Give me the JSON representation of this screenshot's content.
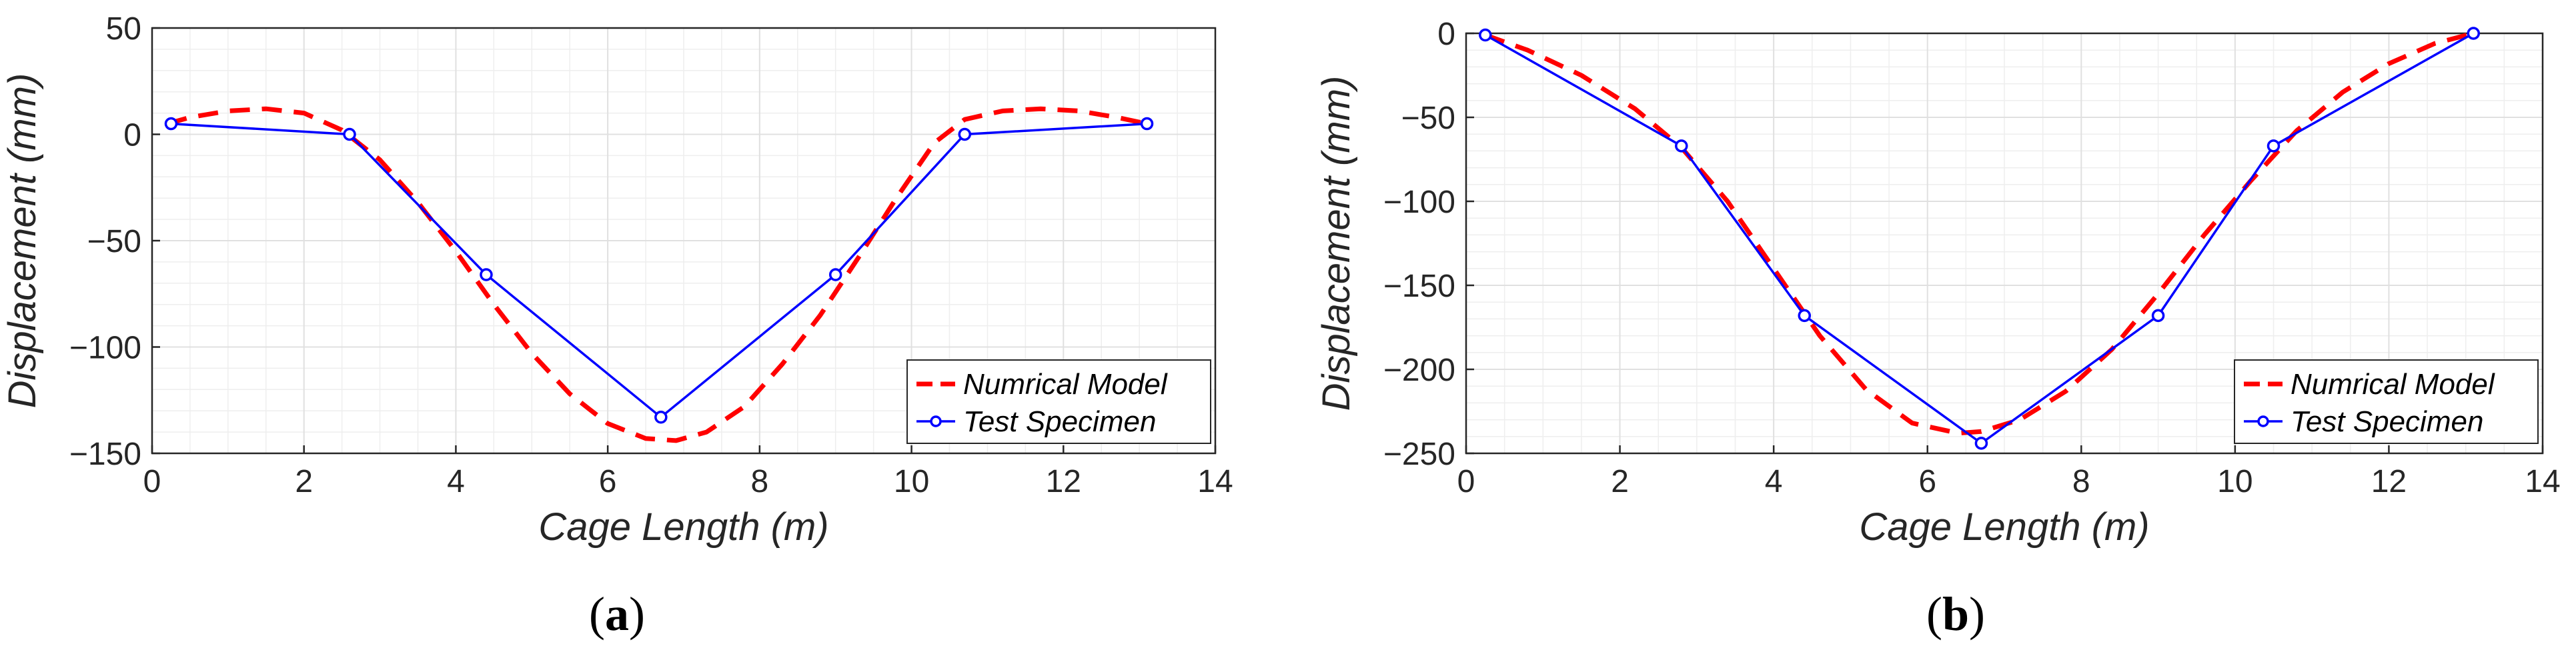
{
  "colors": {
    "numerical": "#ff0000",
    "test": "#0000ff",
    "grid": "#e0e0e0",
    "axis": "#262626"
  },
  "chart_data": [
    {
      "type": "line",
      "id": "a",
      "caption": {
        "open": "(",
        "letter": "a",
        "close": ")"
      },
      "xlabel": "Cage Length (m)",
      "ylabel": "Displacement (mm)",
      "xlim": [
        0,
        14
      ],
      "ylim": [
        -150,
        50
      ],
      "xticks": [
        0,
        2,
        4,
        6,
        8,
        10,
        12,
        14
      ],
      "yticks": [
        -150,
        -100,
        -50,
        0,
        50
      ],
      "grid": true,
      "legend_position": "bottom-right",
      "series": [
        {
          "name": "Numrical Model",
          "style": "dashed",
          "x": [
            0.2,
            0.5,
            1.0,
            1.5,
            2.0,
            2.5,
            3.0,
            3.5,
            4.0,
            4.5,
            5.0,
            5.5,
            6.0,
            6.5,
            6.9,
            7.3,
            7.8,
            8.3,
            8.8,
            9.3,
            9.8,
            10.3,
            10.7,
            11.2,
            11.7,
            12.2,
            12.7,
            13.1
          ],
          "y": [
            5,
            8,
            11,
            12,
            10,
            2,
            -12,
            -32,
            -55,
            -80,
            -103,
            -122,
            -136,
            -143,
            -144,
            -140,
            -128,
            -108,
            -85,
            -58,
            -30,
            -4,
            7,
            11,
            12,
            11,
            8,
            5
          ]
        },
        {
          "name": "Test Specimen",
          "style": "solid-marker",
          "x": [
            0.25,
            2.6,
            4.4,
            6.7,
            9.0,
            10.7,
            13.1
          ],
          "y": [
            5,
            0,
            -66,
            -133,
            -66,
            0,
            5
          ]
        }
      ]
    },
    {
      "type": "line",
      "id": "b",
      "caption": {
        "open": "(",
        "letter": "b",
        "close": ")"
      },
      "xlabel": "Cage Length (m)",
      "ylabel": "Displacement (mm)",
      "xlim": [
        0,
        14
      ],
      "ylim": [
        -250,
        0
      ],
      "xticks": [
        0,
        2,
        4,
        6,
        8,
        10,
        12,
        14
      ],
      "yticks": [
        -250,
        -200,
        -150,
        -100,
        -50,
        0
      ],
      "grid": true,
      "legend_position": "bottom-right",
      "series": [
        {
          "name": "Numrical Model",
          "style": "dashed",
          "x": [
            0.25,
            0.8,
            1.5,
            2.2,
            2.8,
            3.4,
            4.0,
            4.6,
            5.2,
            5.8,
            6.4,
            6.7,
            7.2,
            7.8,
            8.4,
            9.0,
            9.6,
            10.2,
            10.8,
            11.4,
            12.0,
            12.6,
            13.1
          ],
          "y": [
            -1,
            -10,
            -25,
            -45,
            -68,
            -100,
            -140,
            -180,
            -212,
            -232,
            -238,
            -237,
            -230,
            -213,
            -188,
            -155,
            -120,
            -88,
            -58,
            -35,
            -18,
            -6,
            0
          ]
        },
        {
          "name": "Test Specimen",
          "style": "solid-marker",
          "x": [
            0.25,
            2.8,
            4.4,
            6.7,
            9.0,
            10.5,
            13.1
          ],
          "y": [
            -1,
            -67,
            -168,
            -244,
            -168,
            -67,
            0
          ]
        }
      ]
    }
  ]
}
